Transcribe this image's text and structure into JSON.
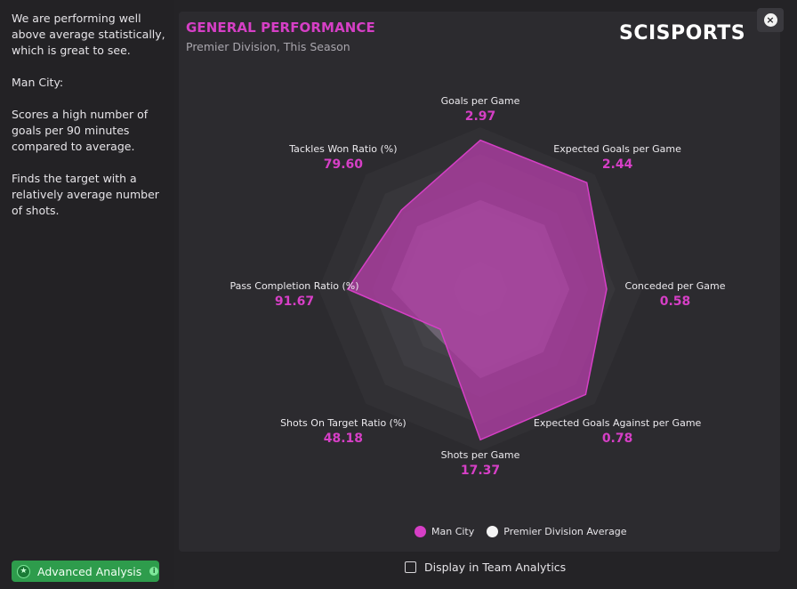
{
  "sidebar": {
    "paragraphs": [
      "We are performing well above average statistically, which is great to see.",
      "Man City:",
      "Scores a high number of goals per 90 minutes compared to average.",
      "Finds the target with a relatively average number of shots."
    ],
    "advanced_button": "Advanced Analysis"
  },
  "panel": {
    "title": "GENERAL PERFORMANCE",
    "subtitle": "Premier Division, This Season",
    "logo": "SCISPORTS"
  },
  "close_icon": "×",
  "display_toggle": {
    "label": "Display in Team Analytics",
    "checked": false
  },
  "colors": {
    "accent": "#d63fc6",
    "team_fill": "#b23ea6",
    "average_fill": "#8e7f93",
    "button_green": "#2e9c4c"
  },
  "chart_data": {
    "type": "radar",
    "title": "GENERAL PERFORMANCE",
    "subtitle": "Premier Division, This Season",
    "axes": [
      {
        "name": "Goals per Game",
        "value": "2.97"
      },
      {
        "name": "Expected Goals per Game",
        "value": "2.44"
      },
      {
        "name": "Conceded per Game",
        "value": "0.58"
      },
      {
        "name": "Expected Goals Against per Game",
        "value": "0.78"
      },
      {
        "name": "Shots per Game",
        "value": "17.37"
      },
      {
        "name": "Shots On Target Ratio (%)",
        "value": "48.18"
      },
      {
        "name": "Pass Completion Ratio (%)",
        "value": "91.67"
      },
      {
        "name": "Tackles Won Ratio (%)",
        "value": "79.60"
      }
    ],
    "series": [
      {
        "name": "Man City",
        "values": [
          0.92,
          0.93,
          0.78,
          0.92,
          0.93,
          0.35,
          0.82,
          0.69
        ]
      },
      {
        "name": "Premier Division Average",
        "values": [
          0.55,
          0.56,
          0.55,
          0.55,
          0.55,
          0.4,
          0.55,
          0.55
        ]
      }
    ],
    "scale": {
      "min": 0,
      "max": 1,
      "rings": 6
    },
    "legend": [
      "Man City",
      "Premier Division Average"
    ],
    "legend_position": "bottom"
  }
}
